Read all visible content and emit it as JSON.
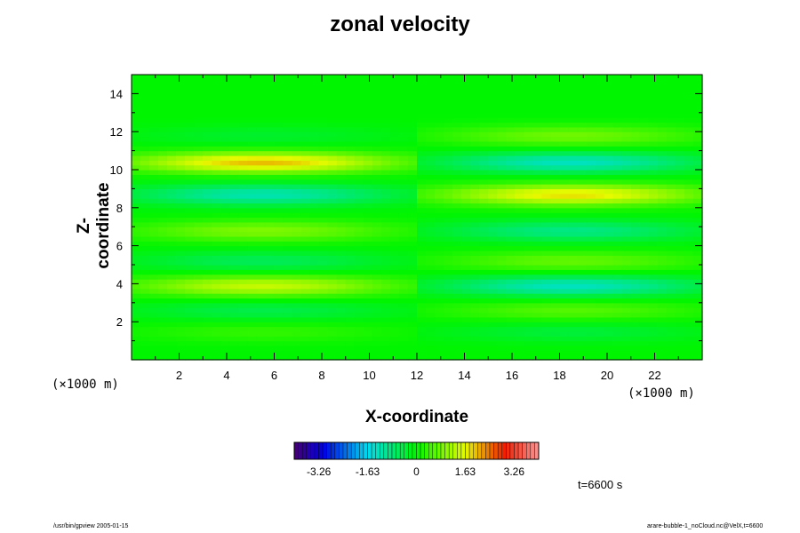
{
  "chart_data": {
    "type": "heatmap",
    "title": "zonal velocity",
    "xlabel": "X-coordinate",
    "ylabel": "Z-coordinate",
    "x_unit_label": "(×1000 m)",
    "z_unit_label": "(×1000 m)",
    "xlim": [
      0,
      24
    ],
    "zlim": [
      0,
      15
    ],
    "x_ticks": [
      "2",
      "4",
      "6",
      "8",
      "10",
      "12",
      "14",
      "16",
      "18",
      "20",
      "22"
    ],
    "z_ticks": [
      "2",
      "4",
      "6",
      "8",
      "10",
      "12",
      "14"
    ],
    "colorbar": {
      "range": [
        -4.08,
        4.08
      ],
      "ticks": [
        "-3.26",
        "-1.63",
        "0",
        "1.63",
        "3.26"
      ]
    },
    "time_label": "t=6600 s",
    "bands": [
      {
        "z": 10.4,
        "left": 2.0,
        "right": -1.3
      },
      {
        "z": 8.7,
        "left": -1.2,
        "right": 1.8
      },
      {
        "z": 6.8,
        "left": 0.9,
        "right": -0.9
      },
      {
        "z": 5.2,
        "left": -0.6,
        "right": 0.7
      },
      {
        "z": 3.9,
        "left": 1.4,
        "right": -1.3
      },
      {
        "z": 2.6,
        "left": -0.5,
        "right": 0.6
      },
      {
        "z": 1.5,
        "left": 0.35,
        "right": -0.4
      },
      {
        "z": 11.8,
        "left": -0.3,
        "right": 0.8
      }
    ]
  },
  "footer": {
    "left": "/usr/bin/gpview 2005-01-15",
    "right": "arare-bubble-1_noCloud.nc@VelX,t=6600"
  }
}
